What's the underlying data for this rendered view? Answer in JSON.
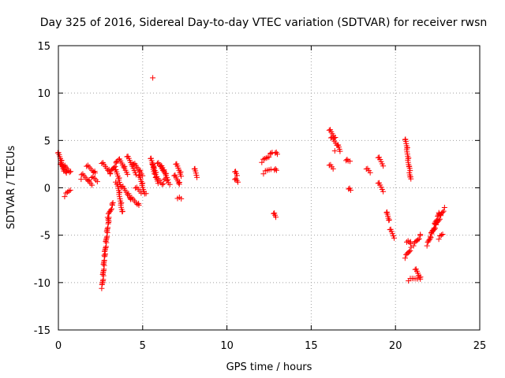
{
  "chart_data": {
    "type": "scatter",
    "title": "Day 325 of 2016, Sidereal Day-to-day VTEC variation (SDTVAR) for receiver rwsn",
    "xlabel": "GPS time / hours",
    "ylabel": "SDTVAR / TECUs",
    "xlim": [
      0,
      25
    ],
    "ylim": [
      -15,
      15
    ],
    "xticks": [
      0,
      5,
      10,
      15,
      20,
      25
    ],
    "yticks": [
      -15,
      -10,
      -5,
      0,
      5,
      10,
      15
    ],
    "grid": true,
    "marker": "+",
    "marker_color": "#ff0000",
    "segments": [
      {
        "x0": 0.0,
        "x1": 0.3,
        "y0": 3.8,
        "y1": 1.9
      },
      {
        "x0": 0.15,
        "x1": 0.5,
        "y0": 2.6,
        "y1": 1.5
      },
      {
        "x0": 0.35,
        "x1": 0.7,
        "y0": 2.4,
        "y1": 1.6
      },
      {
        "x0": 0.4,
        "x1": 0.7,
        "y0": -0.8,
        "y1": -0.2
      },
      {
        "x0": 1.4,
        "x1": 2.0,
        "y0": 1.5,
        "y1": 0.3
      },
      {
        "x0": 1.7,
        "x1": 2.2,
        "y0": 2.4,
        "y1": 1.5
      },
      {
        "x0": 2.0,
        "x1": 2.3,
        "y0": 1.2,
        "y1": 0.7
      },
      {
        "x0": 2.6,
        "x1": 3.1,
        "y0": 2.7,
        "y1": 1.5
      },
      {
        "x0": 2.6,
        "x1": 2.75,
        "y0": -10.5,
        "y1": -7.0
      },
      {
        "x0": 2.75,
        "x1": 3.0,
        "y0": -7.0,
        "y1": -3.0
      },
      {
        "x0": 2.95,
        "x1": 3.25,
        "y0": -3.0,
        "y1": -1.6
      },
      {
        "x0": 3.1,
        "x1": 3.5,
        "y0": 1.6,
        "y1": 2.8
      },
      {
        "x0": 3.4,
        "x1": 3.7,
        "y0": 2.0,
        "y1": 0.2
      },
      {
        "x0": 3.5,
        "x1": 3.8,
        "y0": 0.5,
        "y1": -2.6
      },
      {
        "x0": 3.6,
        "x1": 4.1,
        "y0": 3.1,
        "y1": 1.5
      },
      {
        "x0": 3.8,
        "x1": 4.3,
        "y0": 0.2,
        "y1": -1.2
      },
      {
        "x0": 4.1,
        "x1": 4.6,
        "y0": 3.4,
        "y1": 1.5
      },
      {
        "x0": 4.3,
        "x1": 4.8,
        "y0": -1.0,
        "y1": -1.9
      },
      {
        "x0": 4.5,
        "x1": 5.0,
        "y0": 2.6,
        "y1": 1.3
      },
      {
        "x0": 4.6,
        "x1": 4.9,
        "y0": 0.1,
        "y1": -0.5
      },
      {
        "x0": 4.8,
        "x1": 5.1,
        "y0": 1.4,
        "y1": -0.5
      },
      {
        "x0": 5.5,
        "x1": 5.7,
        "y0": 3.2,
        "y1": 1.5
      },
      {
        "x0": 5.6,
        "x1": 5.9,
        "y0": 2.6,
        "y1": 0.6
      },
      {
        "x0": 5.8,
        "x1": 6.2,
        "y0": 1.2,
        "y1": 0.3
      },
      {
        "x0": 5.9,
        "x1": 6.3,
        "y0": 2.7,
        "y1": 1.6
      },
      {
        "x0": 6.1,
        "x1": 6.5,
        "y0": 2.4,
        "y1": 0.9
      },
      {
        "x0": 6.3,
        "x1": 6.6,
        "y0": 1.0,
        "y1": 0.4
      },
      {
        "x0": 6.9,
        "x1": 7.2,
        "y0": 1.4,
        "y1": 0.3
      },
      {
        "x0": 7.0,
        "x1": 7.3,
        "y0": 2.6,
        "y1": 1.2
      },
      {
        "x0": 7.1,
        "x1": 7.3,
        "y0": -1.0,
        "y1": -1.2
      },
      {
        "x0": 8.1,
        "x1": 8.2,
        "y0": 2.1,
        "y1": 1.2
      },
      {
        "x0": 10.5,
        "x1": 10.6,
        "y0": 1.8,
        "y1": 1.3
      },
      {
        "x0": 10.5,
        "x1": 10.65,
        "y0": 1.0,
        "y1": 0.6
      },
      {
        "x0": 12.1,
        "x1": 12.7,
        "y0": 2.8,
        "y1": 3.7
      },
      {
        "x0": 12.2,
        "x1": 12.6,
        "y0": 1.6,
        "y1": 2.0
      },
      {
        "x0": 12.9,
        "x1": 13.0,
        "y0": 3.8,
        "y1": 3.5
      },
      {
        "x0": 12.85,
        "x1": 12.95,
        "y0": 2.0,
        "y1": 1.8
      },
      {
        "x0": 12.8,
        "x1": 12.9,
        "y0": -2.6,
        "y1": -3.1
      },
      {
        "x0": 16.1,
        "x1": 16.4,
        "y0": 6.2,
        "y1": 5.2
      },
      {
        "x0": 16.2,
        "x1": 16.5,
        "y0": 5.4,
        "y1": 4.6
      },
      {
        "x0": 16.1,
        "x1": 16.3,
        "y0": 2.5,
        "y1": 2.0
      },
      {
        "x0": 16.6,
        "x1": 16.7,
        "y0": 4.6,
        "y1": 3.9
      },
      {
        "x0": 17.1,
        "x1": 17.2,
        "y0": 3.0,
        "y1": 2.8
      },
      {
        "x0": 17.25,
        "x1": 17.35,
        "y0": 0.0,
        "y1": -0.3
      },
      {
        "x0": 18.3,
        "x1": 18.5,
        "y0": 2.1,
        "y1": 1.6
      },
      {
        "x0": 19.0,
        "x1": 19.25,
        "y0": 3.3,
        "y1": 2.4
      },
      {
        "x0": 19.0,
        "x1": 19.25,
        "y0": 0.6,
        "y1": -0.3
      },
      {
        "x0": 19.5,
        "x1": 19.6,
        "y0": -2.5,
        "y1": -3.5
      },
      {
        "x0": 19.7,
        "x1": 19.9,
        "y0": -4.3,
        "y1": -5.2
      },
      {
        "x0": 20.6,
        "x1": 20.9,
        "y0": 5.2,
        "y1": 0.9
      },
      {
        "x0": 20.6,
        "x1": 20.9,
        "y0": -7.3,
        "y1": -6.4
      },
      {
        "x0": 20.7,
        "x1": 20.9,
        "y0": -5.6,
        "y1": -5.9
      },
      {
        "x0": 20.8,
        "x1": 21.3,
        "y0": -9.7,
        "y1": -9.5
      },
      {
        "x0": 21.1,
        "x1": 21.5,
        "y0": -6.0,
        "y1": -5.0
      },
      {
        "x0": 21.2,
        "x1": 21.5,
        "y0": -8.5,
        "y1": -9.7
      },
      {
        "x0": 21.9,
        "x1": 22.6,
        "y0": -6.0,
        "y1": -2.6
      },
      {
        "x0": 22.1,
        "x1": 22.9,
        "y0": -5.0,
        "y1": -2.2
      },
      {
        "x0": 22.6,
        "x1": 22.8,
        "y0": -5.3,
        "y1": -4.9
      }
    ],
    "isolated_points": [
      {
        "x": 5.6,
        "y": 11.6
      },
      {
        "x": 3.4,
        "y": 0.6
      },
      {
        "x": 5.2,
        "y": -0.6
      },
      {
        "x": 1.35,
        "y": 0.9
      },
      {
        "x": 16.4,
        "y": 3.9
      },
      {
        "x": 17.3,
        "y": 2.8
      },
      {
        "x": 20.9,
        "y": -5.7
      }
    ]
  }
}
